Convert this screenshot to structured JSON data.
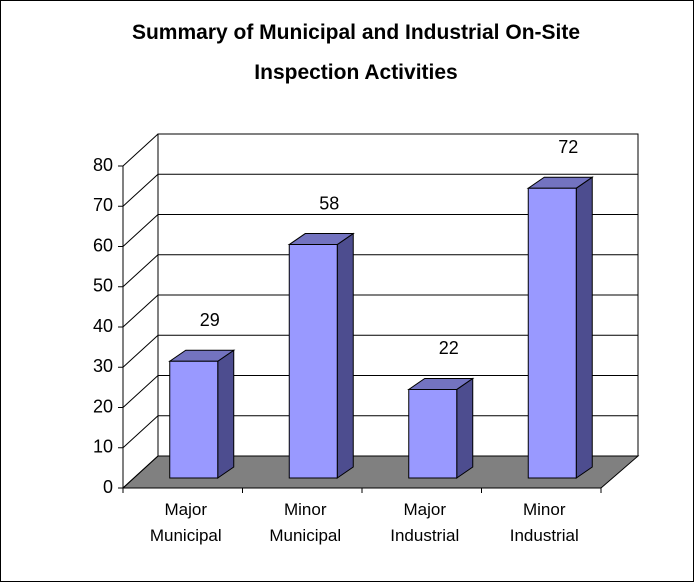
{
  "chart_data": {
    "type": "bar3d",
    "title": "Summary of Municipal and Industrial On-Site Inspection Activities",
    "categories": [
      "Major Municipal",
      "Minor Municipal",
      "Major Industrial",
      "Minor Industrial"
    ],
    "values": [
      29,
      58,
      22,
      72
    ],
    "color": "#9999ff",
    "ylim": [
      0,
      80
    ],
    "yticks": [
      0,
      10,
      20,
      30,
      40,
      50,
      60,
      70,
      80
    ],
    "grid": true
  }
}
